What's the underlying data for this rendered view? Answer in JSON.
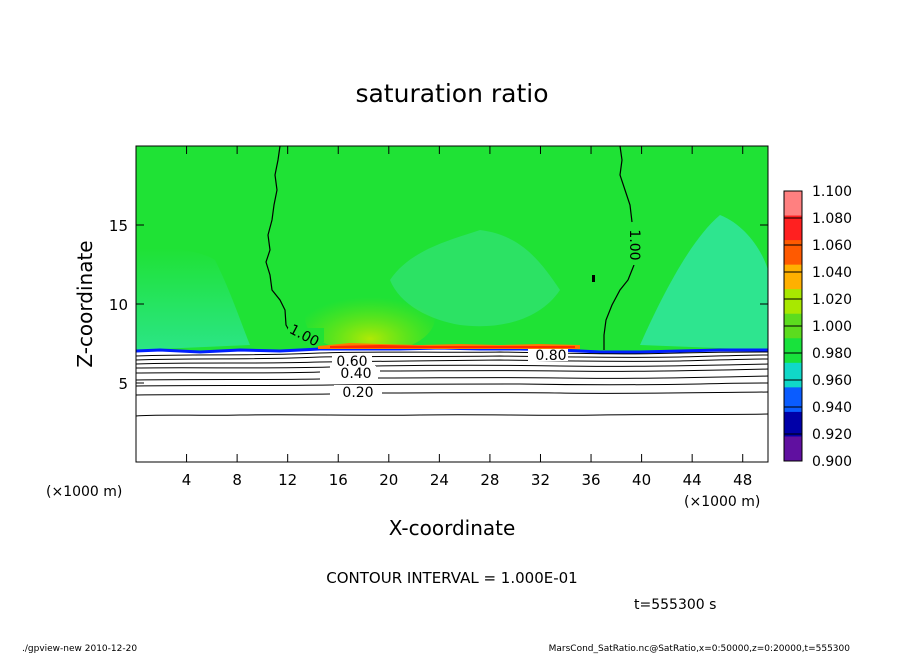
{
  "chart_data": {
    "type": "heatmap",
    "title": "saturation ratio",
    "xlabel": "X-coordinate",
    "ylabel": "Z-coordinate",
    "x_unit": "(×1000 m)",
    "y_unit": "(×1000 m)",
    "xlim": [
      0,
      50
    ],
    "ylim": [
      0,
      20
    ],
    "x_ticks": [
      4,
      8,
      12,
      16,
      20,
      24,
      28,
      32,
      36,
      40,
      44,
      48
    ],
    "y_ticks": [
      5,
      10,
      15
    ],
    "colorbar": {
      "levels": [
        "1.100",
        "1.080",
        "1.060",
        "1.040",
        "1.020",
        "1.000",
        "0.980",
        "0.960",
        "0.940",
        "0.920",
        "0.900"
      ],
      "colors": [
        "#ff8080",
        "#ff2020",
        "#ff5a00",
        "#ffb000",
        "#a8e800",
        "#5cdc1e",
        "#18e23c",
        "#10d8c8",
        "#0a5cff",
        "#0000a8",
        "#6010a0"
      ]
    },
    "background_value": 1.0,
    "background_color": "#1fe235",
    "contour_labels": [
      "1.00",
      "1.00",
      "0.80",
      "0.60",
      "0.40",
      "0.20"
    ],
    "contour_interval_text": "CONTOUR INTERVAL = 1.000E-01",
    "time_text": "t=555300 s"
  },
  "footer": {
    "left": "./gpview-new 2010-12-20",
    "right": "MarsCond_SatRatio.nc@SatRatio,x=0:50000,z=0:20000,t=555300"
  }
}
